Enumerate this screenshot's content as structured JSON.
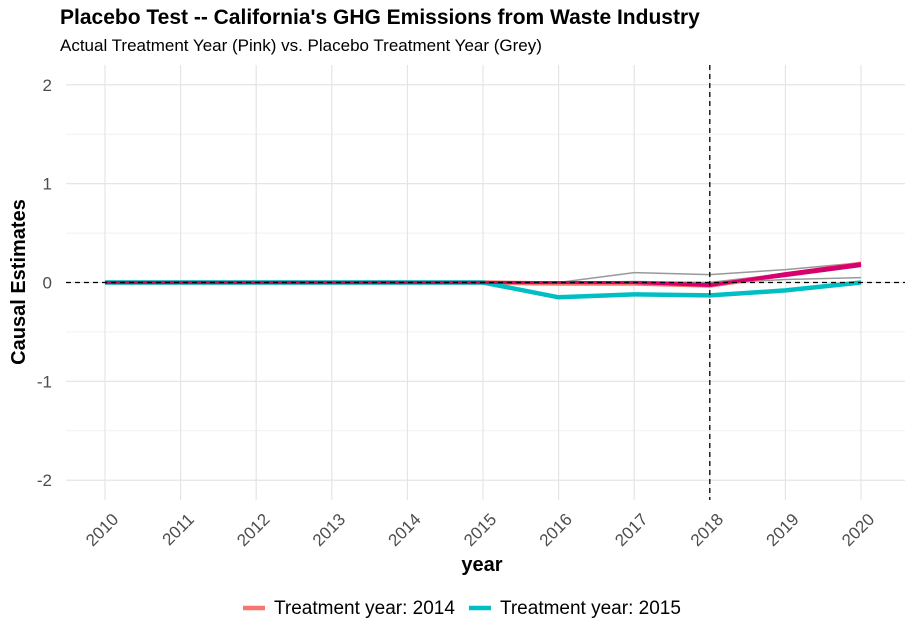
{
  "chart_data": {
    "type": "line",
    "title": "Placebo Test -- California's GHG Emissions from Waste Industry",
    "subtitle": "Actual Treatment Year (Pink) vs. Placebo Treatment Year (Grey)",
    "xlabel": "year",
    "ylabel": "Causal Estimates",
    "x": [
      2010,
      2011,
      2012,
      2013,
      2014,
      2015,
      2016,
      2017,
      2018,
      2019,
      2020
    ],
    "ylim": [
      -2.2,
      2.2
    ],
    "yticks": [
      -2,
      -1,
      0,
      1,
      2
    ],
    "grid": true,
    "reference_lines": {
      "y": 0,
      "x": 2018
    },
    "series": [
      {
        "name": "Treatment year: 2014",
        "color": "#F8766D",
        "values": [
          0,
          0,
          0,
          0,
          0,
          0,
          -0.01,
          -0.01,
          -0.03,
          0.08,
          0.19
        ]
      },
      {
        "name": "Treatment year: 2015",
        "color": "#00BFC4",
        "values": [
          0,
          0,
          0,
          0,
          0,
          0,
          -0.15,
          -0.12,
          -0.13,
          -0.08,
          0.0
        ]
      }
    ],
    "placebo_lines": {
      "color": "#999999",
      "lines": [
        [
          0,
          0,
          0,
          0,
          0,
          0,
          0,
          0.1,
          0.08,
          0.13,
          0.2
        ],
        [
          0,
          0,
          0,
          0,
          0,
          0,
          0,
          0,
          -0.01,
          0.03,
          0.05
        ],
        [
          0,
          0,
          0,
          0,
          0,
          0,
          0,
          0.01,
          0.0,
          0.09,
          0.18
        ]
      ]
    },
    "actual_lines": {
      "color": "#D6006F",
      "lines": [
        [
          0,
          0,
          0,
          0,
          0,
          0,
          0,
          0,
          -0.02,
          0.07,
          0.17
        ],
        [
          0,
          0,
          0,
          0,
          0,
          0,
          0,
          0,
          -0.03,
          0.09,
          0.19
        ]
      ]
    },
    "legend": {
      "position": "bottom"
    }
  }
}
